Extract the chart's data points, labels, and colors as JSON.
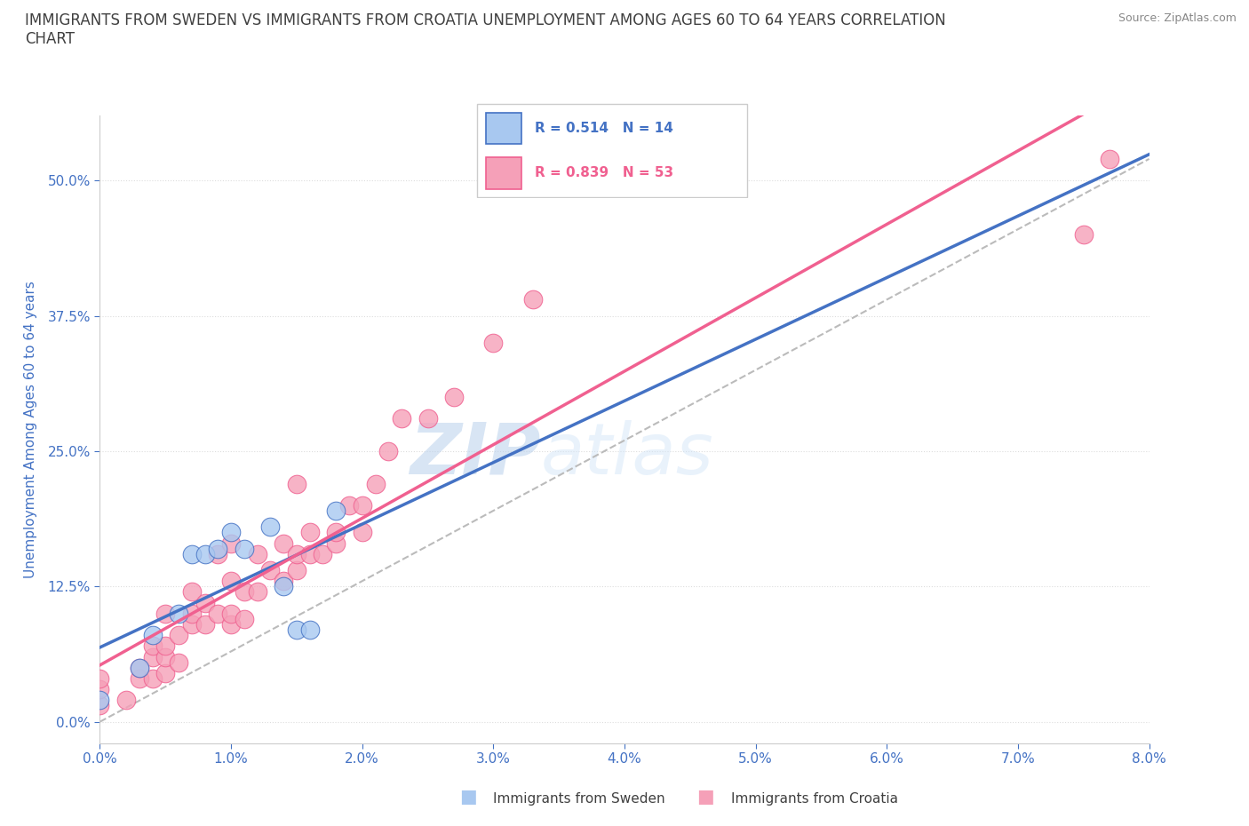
{
  "title_line1": "IMMIGRANTS FROM SWEDEN VS IMMIGRANTS FROM CROATIA UNEMPLOYMENT AMONG AGES 60 TO 64 YEARS CORRELATION",
  "title_line2": "CHART",
  "source_text": "Source: ZipAtlas.com",
  "xlabel_ticks": [
    "0.0%",
    "1.0%",
    "2.0%",
    "3.0%",
    "4.0%",
    "5.0%",
    "6.0%",
    "7.0%",
    "8.0%"
  ],
  "ylabel_ticks": [
    "0.0%",
    "12.5%",
    "25.0%",
    "37.5%",
    "50.0%"
  ],
  "ylabel_label": "Unemployment Among Ages 60 to 64 years",
  "xlim": [
    0.0,
    0.08
  ],
  "ylim": [
    -0.02,
    0.56
  ],
  "sweden_color": "#A8C8F0",
  "croatia_color": "#F5A0B8",
  "sweden_line_color": "#4472C4",
  "croatia_line_color": "#F06090",
  "ref_line_color": "#BBBBBB",
  "legend_r_sweden": "R = 0.514",
  "legend_n_sweden": "N = 14",
  "legend_r_croatia": "R = 0.839",
  "legend_n_croatia": "N = 53",
  "watermark_zip": "ZIP",
  "watermark_atlas": "atlas",
  "sweden_x": [
    0.0,
    0.003,
    0.004,
    0.006,
    0.007,
    0.008,
    0.009,
    0.01,
    0.011,
    0.013,
    0.014,
    0.015,
    0.016,
    0.018
  ],
  "sweden_y": [
    0.02,
    0.05,
    0.08,
    0.1,
    0.155,
    0.155,
    0.16,
    0.175,
    0.16,
    0.18,
    0.125,
    0.085,
    0.085,
    0.195
  ],
  "croatia_x": [
    0.0,
    0.0,
    0.0,
    0.002,
    0.003,
    0.003,
    0.004,
    0.004,
    0.004,
    0.005,
    0.005,
    0.005,
    0.005,
    0.006,
    0.006,
    0.007,
    0.007,
    0.007,
    0.008,
    0.008,
    0.009,
    0.009,
    0.01,
    0.01,
    0.01,
    0.01,
    0.011,
    0.011,
    0.012,
    0.012,
    0.013,
    0.014,
    0.014,
    0.015,
    0.015,
    0.015,
    0.016,
    0.016,
    0.017,
    0.018,
    0.018,
    0.019,
    0.02,
    0.02,
    0.021,
    0.022,
    0.023,
    0.025,
    0.027,
    0.03,
    0.033,
    0.075,
    0.077
  ],
  "croatia_y": [
    0.015,
    0.03,
    0.04,
    0.02,
    0.04,
    0.05,
    0.04,
    0.06,
    0.07,
    0.045,
    0.06,
    0.07,
    0.1,
    0.055,
    0.08,
    0.09,
    0.1,
    0.12,
    0.09,
    0.11,
    0.1,
    0.155,
    0.09,
    0.1,
    0.13,
    0.165,
    0.095,
    0.12,
    0.12,
    0.155,
    0.14,
    0.13,
    0.165,
    0.14,
    0.155,
    0.22,
    0.155,
    0.175,
    0.155,
    0.165,
    0.175,
    0.2,
    0.175,
    0.2,
    0.22,
    0.25,
    0.28,
    0.28,
    0.3,
    0.35,
    0.39,
    0.45,
    0.52
  ],
  "background_color": "#FFFFFF",
  "grid_color": "#DDDDDD",
  "title_color": "#404040",
  "axis_label_color": "#4472C4",
  "tick_label_color": "#4472C4",
  "legend_text_color": "#404040"
}
